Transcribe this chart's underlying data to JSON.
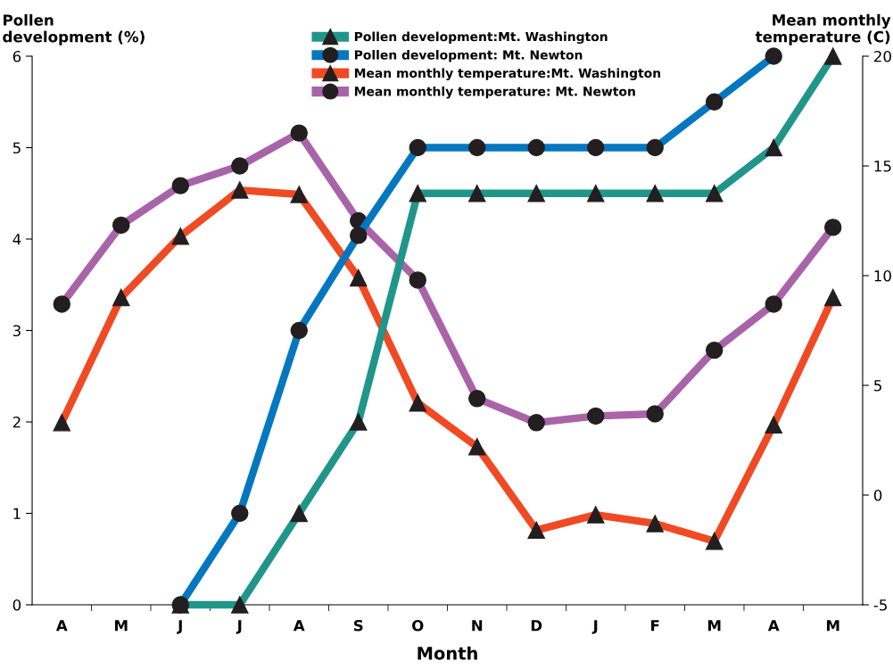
{
  "chart_data": {
    "type": "line",
    "xlabel": "Month",
    "ylabel": "Pollen\ndevelopment (%)",
    "y2label": "Mean monthly\ntemperature (C)",
    "categories": [
      "A",
      "M",
      "J",
      "J",
      "A",
      "S",
      "O",
      "N",
      "D",
      "J",
      "F",
      "M",
      "A",
      "M"
    ],
    "series": [
      {
        "name": "Pollen development:Mt. Washington",
        "color": "#20968a",
        "marker": "triangle",
        "values": [
          null,
          null,
          0,
          0,
          1,
          2,
          4.5,
          4.5,
          4.5,
          4.5,
          4.5,
          4.5,
          5,
          6
        ]
      },
      {
        "name": "Pollen development: Mt. Newton",
        "color": "#0577c0",
        "marker": "circle",
        "values": [
          null,
          null,
          0,
          1,
          3,
          4.04,
          5,
          5,
          5,
          5,
          5,
          5.5,
          6,
          null
        ]
      },
      {
        "name": "Mean monthly temperature:Mt. Washington",
        "color": "#f04a24",
        "marker": "triangle",
        "axis": "y2",
        "values": [
          3.3,
          9.0,
          11.8,
          13.9,
          13.7,
          9.9,
          4.2,
          2.2,
          -1.6,
          -0.9,
          -1.3,
          -2.1,
          3.2,
          9.0
        ]
      },
      {
        "name": "Mean monthly temperature: Mt. Newton",
        "color": "#a964a9",
        "marker": "circle",
        "axis": "y2",
        "values": [
          8.7,
          12.3,
          14.1,
          15.0,
          16.5,
          12.5,
          9.8,
          4.4,
          3.3,
          3.6,
          3.7,
          6.6,
          8.7,
          12.2
        ]
      }
    ],
    "ylim": [
      0,
      6
    ],
    "yticks": [
      0,
      1,
      2,
      3,
      4,
      5,
      6
    ],
    "y2lim": [
      -5,
      20
    ],
    "y2ticks": [
      {
        "value": -5,
        "label": "-5"
      },
      0,
      5,
      10,
      15,
      20
    ],
    "legend": "top",
    "grid": false,
    "line_style": "solid"
  }
}
